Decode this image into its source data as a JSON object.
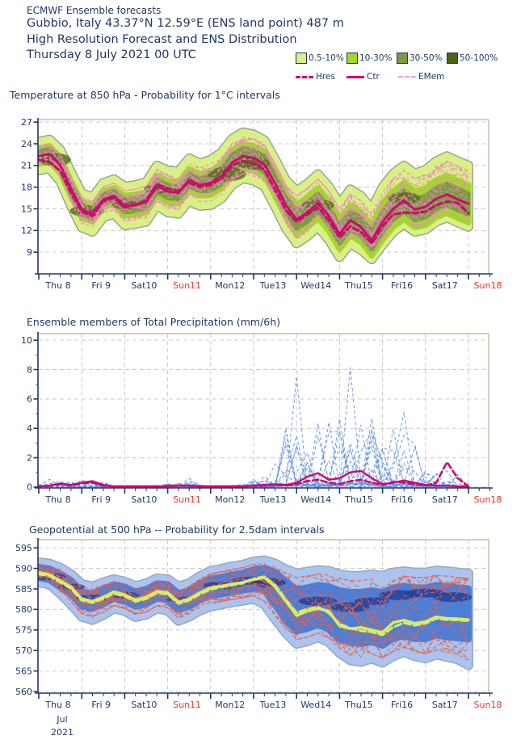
{
  "header": {
    "line1": "ECMWF Ensemble forecasts",
    "location": "Gubbio, Italy 43.37°N 12.59°E (ENS land point) 487 m",
    "product": "High Resolution Forecast and ENS Distribution",
    "run": "Thursday  8 July 2021 00 UTC"
  },
  "legend": {
    "bands": [
      {
        "label": "0.5-10%",
        "color": "#d9f184"
      },
      {
        "label": "10-30%",
        "color": "#9fdb25"
      },
      {
        "label": "30-50%",
        "color": "#7d9b45"
      },
      {
        "label": "50-100%",
        "color": "#4a660f"
      }
    ],
    "lines": [
      {
        "label": "Hres",
        "style": "dashed-bold",
        "color": "#cc0a6e"
      },
      {
        "label": "Ctr",
        "style": "solid",
        "color": "#cc0a6e"
      },
      {
        "label": "EMem",
        "style": "dashed-thin",
        "color": "#f4a0ce"
      }
    ]
  },
  "colors": {
    "navy": "#1f3864",
    "red": "#e73527",
    "grid": "#c9c9c9",
    "axis": "#1f3864",
    "frame": "#a89f80",
    "crimson": "#cc0a6e",
    "pink": "#ef86c0",
    "band_outer": "#d9f184",
    "band_mid": "#9fdb25",
    "band_inner": "#7d9b45",
    "band_dark": "#55711a",
    "band_rim": "#9aa39b",
    "precip_blue": "#6494e4",
    "geo_light": "#abc3ee",
    "geo_mid": "#4c7ed6",
    "geo_navy": "#23409a",
    "geo_salmon": "#e7604c",
    "geo_lime": "#d9ec62"
  },
  "xaxis": {
    "x_start_hour": 0,
    "x_step_hours": 6,
    "n_points": 41,
    "days": [
      {
        "label": "Thu 8",
        "red": false
      },
      {
        "label": "Fri 9",
        "red": false
      },
      {
        "label": "Sat10",
        "red": false
      },
      {
        "label": "Sun11",
        "red": true
      },
      {
        "label": "Mon12",
        "red": false
      },
      {
        "label": "Tue13",
        "red": false
      },
      {
        "label": "Wed14",
        "red": false
      },
      {
        "label": "Thu15",
        "red": false
      },
      {
        "label": "Fri16",
        "red": false
      },
      {
        "label": "Sat17",
        "red": false
      },
      {
        "label": "Sun18",
        "red": true
      }
    ],
    "month": "Jul",
    "year": "2021"
  },
  "chart_data": [
    {
      "type": "area",
      "title": "Temperature at 850 hPa - Probability for 1°C intervals",
      "ylim": [
        6,
        27.4
      ],
      "yticks": [
        27,
        24,
        21,
        18,
        15,
        12,
        9
      ],
      "ctr": [
        22.3,
        22.6,
        21.0,
        17.8,
        14.9,
        14.3,
        16.3,
        16.8,
        15.4,
        15.6,
        15.9,
        18.2,
        17.4,
        17.2,
        19.0,
        18.3,
        18.6,
        19.5,
        21.4,
        22.3,
        22.0,
        21.2,
        18.5,
        15.5,
        13.5,
        14.5,
        15.8,
        14.0,
        11.5,
        13.4,
        12.5,
        10.6,
        13.2,
        15.0,
        16.1,
        14.9,
        15.3,
        16.4,
        17.0,
        16.3,
        15.7
      ],
      "hres": [
        21.8,
        21.5,
        20.2,
        17.2,
        14.6,
        14.0,
        16.0,
        16.5,
        15.2,
        15.5,
        16.2,
        18.4,
        17.8,
        17.5,
        18.6,
        18.0,
        18.3,
        19.2,
        21.0,
        21.6,
        21.3,
        20.4,
        17.6,
        14.8,
        13.2,
        14.2,
        15.2,
        13.4,
        11.0,
        12.6,
        11.8,
        10.2,
        12.6,
        14.2,
        14.5,
        14.4,
        14.6,
        15.5,
        16.0,
        15.8,
        14.4
      ],
      "bands": {
        "outer_hi": [
          24.3,
          24.6,
          23.2,
          20.1,
          17.2,
          16.6,
          18.6,
          19.1,
          18.1,
          18.3,
          18.7,
          21.0,
          20.3,
          20.2,
          22.0,
          21.3,
          21.8,
          22.8,
          24.7,
          25.6,
          25.3,
          24.5,
          21.9,
          19.0,
          17.5,
          18.5,
          19.8,
          18.1,
          15.7,
          17.7,
          16.8,
          15.0,
          18.0,
          19.9,
          21.0,
          19.9,
          20.4,
          21.6,
          22.3,
          21.6,
          21.0
        ],
        "outer_lo": [
          20.3,
          20.6,
          18.8,
          15.4,
          12.4,
          11.8,
          13.8,
          14.3,
          12.7,
          12.9,
          13.2,
          15.5,
          14.5,
          14.3,
          16.1,
          15.4,
          15.5,
          16.4,
          18.3,
          19.2,
          18.9,
          18.1,
          15.3,
          12.3,
          10.2,
          11.2,
          12.5,
          10.7,
          8.3,
          10.2,
          9.3,
          8.0,
          10.0,
          11.8,
          12.9,
          11.8,
          12.1,
          13.2,
          13.8,
          13.1,
          12.5
        ],
        "mid_hi": [
          23.4,
          23.7,
          22.1,
          18.9,
          16.0,
          15.4,
          17.4,
          17.9,
          16.8,
          17.0,
          17.3,
          19.6,
          18.9,
          18.7,
          20.5,
          19.8,
          20.3,
          21.2,
          23.1,
          24.0,
          23.7,
          22.9,
          20.2,
          17.2,
          15.6,
          16.6,
          17.9,
          16.1,
          13.6,
          15.5,
          14.6,
          12.7,
          15.7,
          17.5,
          18.6,
          17.4,
          17.9,
          19.0,
          19.6,
          18.9,
          18.3
        ],
        "mid_lo": [
          21.2,
          21.5,
          19.9,
          16.7,
          13.8,
          13.2,
          15.2,
          15.7,
          14.0,
          14.2,
          14.5,
          16.8,
          15.9,
          15.7,
          17.5,
          16.8,
          16.9,
          17.8,
          19.7,
          20.6,
          20.3,
          19.5,
          16.8,
          13.8,
          11.4,
          12.4,
          13.7,
          11.9,
          9.4,
          11.3,
          10.4,
          8.5,
          10.7,
          12.5,
          13.6,
          12.4,
          12.7,
          13.8,
          14.4,
          13.7,
          13.1
        ],
        "inner_hi": [
          23.0,
          23.3,
          21.7,
          18.5,
          15.6,
          15.0,
          17.0,
          17.5,
          16.3,
          16.5,
          16.8,
          19.1,
          18.3,
          18.1,
          19.9,
          19.2,
          19.7,
          20.6,
          22.5,
          23.4,
          23.1,
          22.3,
          19.6,
          16.6,
          14.8,
          15.8,
          17.1,
          15.3,
          12.8,
          14.7,
          13.8,
          11.9,
          14.7,
          16.5,
          17.6,
          16.4,
          16.8,
          17.9,
          18.5,
          17.8,
          17.2
        ],
        "inner_lo": [
          21.6,
          21.9,
          20.3,
          17.1,
          14.2,
          13.6,
          15.6,
          16.1,
          14.5,
          14.7,
          15.0,
          17.3,
          16.5,
          16.3,
          18.1,
          17.4,
          17.5,
          18.4,
          20.3,
          21.2,
          20.9,
          20.1,
          17.4,
          14.4,
          12.2,
          13.2,
          14.5,
          12.7,
          10.2,
          12.1,
          11.2,
          9.3,
          11.7,
          13.5,
          14.6,
          13.4,
          13.8,
          14.9,
          15.5,
          14.8,
          14.2
        ]
      },
      "dark_patches": [
        [
          1.5,
          21.8,
          1.5,
          0.9
        ],
        [
          4.5,
          14.7,
          1.6,
          0.8
        ],
        [
          8,
          15.6,
          1.2,
          0.7
        ],
        [
          11,
          17.8,
          1.2,
          0.7
        ],
        [
          17.5,
          19.8,
          1.8,
          1.0
        ],
        [
          20,
          21.3,
          1.5,
          0.9
        ],
        [
          26,
          15.5,
          1.5,
          0.8
        ],
        [
          34,
          16.5,
          1.5,
          0.8
        ]
      ]
    },
    {
      "type": "line",
      "title": "Ensemble members of Total Precipitation (mm/6h)",
      "ylim": [
        0,
        10.45
      ],
      "yticks": [
        10,
        8,
        6,
        4,
        2,
        0
      ],
      "yticks_minor": [
        9,
        7,
        5,
        3,
        1
      ],
      "ctr": [
        0.05,
        0.1,
        0.25,
        0.15,
        0.3,
        0.4,
        0.15,
        0.05,
        0.05,
        0.05,
        0.05,
        0.05,
        0.05,
        0.1,
        0.1,
        0.05,
        0.05,
        0.05,
        0.05,
        0.05,
        0.1,
        0.15,
        0.2,
        0.15,
        0.3,
        0.7,
        0.95,
        0.5,
        0.6,
        1.0,
        1.1,
        0.6,
        0.2,
        0.3,
        0.45,
        0.3,
        0.15,
        0.1,
        0.1,
        0.05,
        0.02
      ],
      "hres": [
        0.05,
        0.08,
        0.2,
        0.1,
        0.25,
        0.3,
        0.1,
        0.05,
        0.05,
        0.05,
        0.05,
        0.05,
        0.08,
        0.12,
        0.08,
        0.05,
        0.05,
        0.05,
        0.05,
        0.05,
        0.08,
        0.1,
        0.15,
        0.1,
        0.2,
        0.4,
        0.5,
        0.3,
        0.2,
        0.4,
        0.5,
        0.3,
        0.15,
        0.35,
        0.3,
        0.2,
        0.1,
        0.3,
        1.7,
        0.6,
        0.05
      ],
      "member_max_envelope": [
        0.35,
        0.55,
        0.75,
        0.55,
        0.75,
        0.65,
        0.35,
        0.12,
        0.1,
        0.1,
        0.1,
        0.12,
        0.25,
        0.55,
        0.6,
        0.3,
        0.12,
        0.1,
        0.15,
        0.25,
        0.6,
        1.2,
        2.5,
        5.5,
        8.6,
        5.5,
        8.3,
        4.5,
        5.5,
        9.0,
        8.2,
        4.8,
        2.8,
        5.2,
        6.9,
        3.2,
        1.6,
        1.2,
        1.3,
        0.9,
        0.3
      ]
    },
    {
      "type": "area",
      "title": "Geopotential at 500 hPa -- Probability for 2.5dam intervals",
      "ylim": [
        559.6,
        597
      ],
      "yticks": [
        595,
        590,
        585,
        580,
        575,
        570,
        565,
        560
      ],
      "ctr": [
        589,
        588.5,
        587,
        585.5,
        582.6,
        582,
        583,
        584.3,
        583.6,
        582.3,
        583,
        584.4,
        584.1,
        581.8,
        582.6,
        584.1,
        585.3,
        585.7,
        586.2,
        586.6,
        587.3,
        587.7,
        585.5,
        582,
        578.5,
        579.6,
        580.2,
        579.6,
        576,
        575.3,
        575.6,
        575,
        574.4,
        576.8,
        577.4,
        576.6,
        577,
        578.2,
        577.8,
        577.7,
        577.5
      ],
      "hres": [
        588.6,
        588.1,
        586.6,
        585.1,
        582.2,
        581.6,
        582.6,
        583.9,
        583.2,
        581.9,
        582.6,
        584,
        583.7,
        581.4,
        582.2,
        583.7,
        584.9,
        585.4,
        585.9,
        586.4,
        587.5,
        588,
        586,
        582.4,
        579.2,
        580.1,
        580.6,
        579.1,
        576.5,
        575.4,
        574.8,
        574.5,
        573.8,
        575.7,
        576.7,
        576.1,
        576.6,
        577.8,
        577.5,
        577.4,
        577.2
      ],
      "bands": {
        "outer_hi": [
          591.5,
          591.2,
          590.2,
          588.6,
          586.2,
          585.6,
          586.6,
          587.4,
          586.8,
          585.7,
          586.4,
          587.6,
          587.4,
          585.6,
          586.4,
          588.1,
          589.4,
          589.9,
          590.5,
          590.9,
          591.7,
          592.0,
          591.2,
          589.8,
          588.8,
          589.2,
          589.6,
          589.4,
          588.6,
          588.2,
          588.2,
          588.6,
          588.2,
          589.0,
          589.3,
          589.0,
          589.0,
          589.5,
          589.3,
          589.0,
          588.8
        ],
        "outer_lo": [
          586.6,
          586.1,
          583.8,
          581.2,
          578.2,
          577.4,
          578.6,
          580.2,
          579.6,
          578.1,
          578.7,
          580.2,
          579.7,
          577.2,
          578.2,
          579.7,
          580.7,
          581.2,
          581.7,
          582.1,
          582.6,
          581.2,
          577.6,
          574.2,
          571.6,
          572.2,
          573.2,
          572.0,
          569.4,
          567.6,
          567.2,
          568.0,
          567.0,
          568.6,
          569.6,
          568.6,
          568.0,
          569.0,
          568.4,
          567.8,
          566.4
        ],
        "mid_hi": [
          590.3,
          589.9,
          588.6,
          587.1,
          584.4,
          583.8,
          584.9,
          586.1,
          585.5,
          584.3,
          584.9,
          586.3,
          586.1,
          583.9,
          584.6,
          586.3,
          587.5,
          587.9,
          588.4,
          588.9,
          589.7,
          590.1,
          589.1,
          586.9,
          584.9,
          585.3,
          585.9,
          585.6,
          584.6,
          584.2,
          584.2,
          584.6,
          584.2,
          585.3,
          585.7,
          585.3,
          585.3,
          585.9,
          585.6,
          585.3,
          585.1
        ],
        "mid_lo": [
          587.7,
          587.2,
          585.4,
          583.6,
          580.8,
          580.2,
          581.3,
          582.7,
          582.0,
          580.7,
          581.3,
          582.7,
          582.3,
          579.9,
          580.7,
          582.3,
          583.3,
          583.7,
          584.2,
          584.6,
          585.1,
          584.6,
          581.1,
          577.3,
          574.7,
          575.3,
          576.3,
          575.1,
          572.7,
          571.9,
          571.6,
          572.1,
          571.2,
          572.9,
          573.5,
          572.8,
          572.8,
          573.7,
          573.3,
          573.0,
          572.7
        ]
      },
      "navy_patches": [
        [
          1,
          588,
          1.5,
          0.9
        ],
        [
          3,
          585.5,
          1.3,
          0.8
        ],
        [
          5,
          582.8,
          1.5,
          0.8
        ],
        [
          8,
          583.5,
          1.4,
          0.8
        ],
        [
          13,
          582.5,
          1.2,
          0.7
        ],
        [
          17,
          585.8,
          1.8,
          0.9
        ],
        [
          20,
          587,
          2,
          1.0
        ],
        [
          21.5,
          586.5,
          1.5,
          1.2
        ],
        [
          26,
          582,
          1.8,
          1.1
        ],
        [
          29,
          580.5,
          1.8,
          1.2
        ],
        [
          31,
          582,
          1.6,
          1.0
        ],
        [
          33.5,
          583.5,
          1.8,
          1.2
        ],
        [
          36,
          584,
          1.8,
          1.1
        ],
        [
          38.5,
          583,
          1.8,
          1.2
        ]
      ]
    }
  ]
}
